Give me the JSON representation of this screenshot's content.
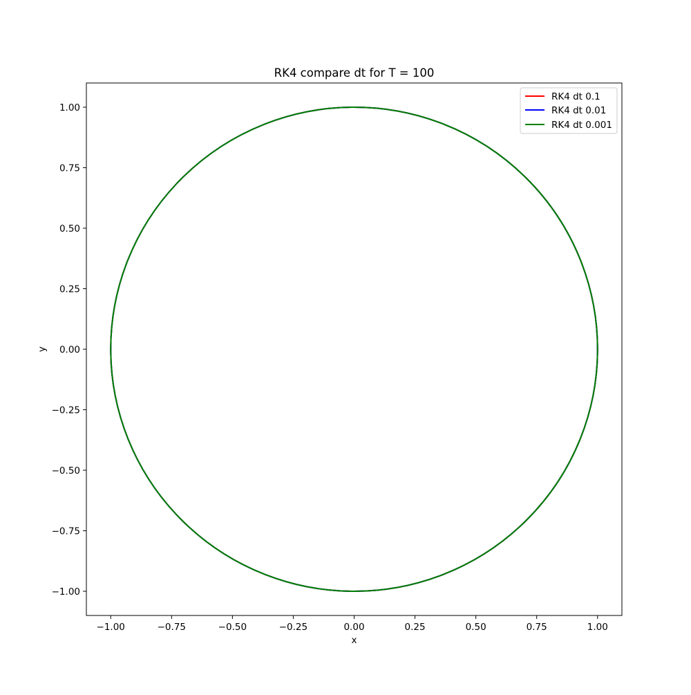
{
  "chart_data": {
    "type": "line",
    "title": "RK4 compare dt for T = 100",
    "xlabel": "x",
    "ylabel": "y",
    "xlim": [
      -1.1,
      1.1
    ],
    "ylim": [
      -1.1,
      1.1
    ],
    "xticks": [
      -1.0,
      -0.75,
      -0.5,
      -0.25,
      0.0,
      0.25,
      0.5,
      0.75,
      1.0
    ],
    "xtick_labels": [
      "−1.00",
      "−0.75",
      "−0.50",
      "−0.25",
      "0.00",
      "0.25",
      "0.50",
      "0.75",
      "1.00"
    ],
    "yticks": [
      -1.0,
      -0.75,
      -0.5,
      -0.25,
      0.0,
      0.25,
      0.5,
      0.75,
      1.0
    ],
    "ytick_labels": [
      "−1.00",
      "−0.75",
      "−0.50",
      "−0.25",
      "0.00",
      "0.25",
      "0.50",
      "0.75",
      "1.00"
    ],
    "grid": false,
    "legend_position": "top-right",
    "series": [
      {
        "name": "RK4 dt 0.1",
        "color": "#ff0000",
        "shape": "circle",
        "radius": 1.0,
        "center": [
          0,
          0
        ]
      },
      {
        "name": "RK4 dt 0.01",
        "color": "#0000ff",
        "shape": "circle",
        "radius": 1.0,
        "center": [
          0,
          0
        ]
      },
      {
        "name": "RK4 dt 0.001",
        "color": "#008000",
        "shape": "circle",
        "radius": 1.0,
        "center": [
          0,
          0
        ]
      }
    ]
  }
}
